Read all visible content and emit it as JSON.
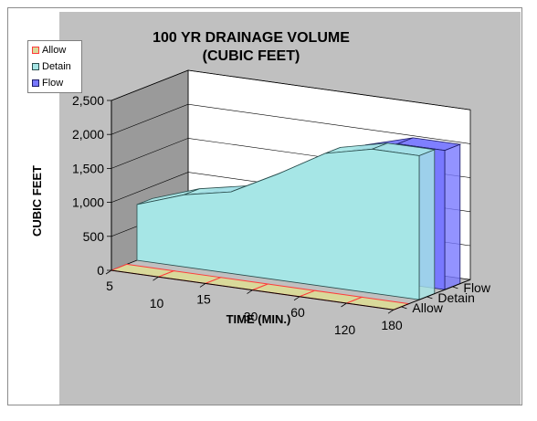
{
  "chart_data": {
    "type": "area",
    "title_lines": [
      "100 YR DRAINAGE VOLUME",
      "(CUBIC FEET)"
    ],
    "xlabel": "TIME (MIN.)",
    "ylabel": "CUBIC FEET",
    "categories": [
      "5",
      "10",
      "15",
      "30",
      "60",
      "120",
      "180"
    ],
    "y_ticks": [
      "0",
      "500",
      "1,000",
      "1,500",
      "2,000",
      "2,500"
    ],
    "ylim": [
      0,
      2500
    ],
    "depth_labels": [
      "Allow",
      "Detain",
      "Flow"
    ],
    "series": [
      {
        "name": "Allow",
        "values": [
          0,
          0,
          0,
          0,
          0,
          0,
          0
        ],
        "color": "#d9d99a",
        "edge": "#ff3b3b"
      },
      {
        "name": "Detain",
        "values": [
          820,
          1060,
          1200,
          1560,
          1960,
          2120,
          2120
        ],
        "color": "#a6e6e6",
        "edge": "#2a4d4d"
      },
      {
        "name": "Flow",
        "values": [
          700,
          930,
          1060,
          1380,
          1850,
          2050,
          2050
        ],
        "color": "#7878ff",
        "edge": "#1c1c66"
      }
    ],
    "grid": true,
    "legend_position": "top-left"
  }
}
